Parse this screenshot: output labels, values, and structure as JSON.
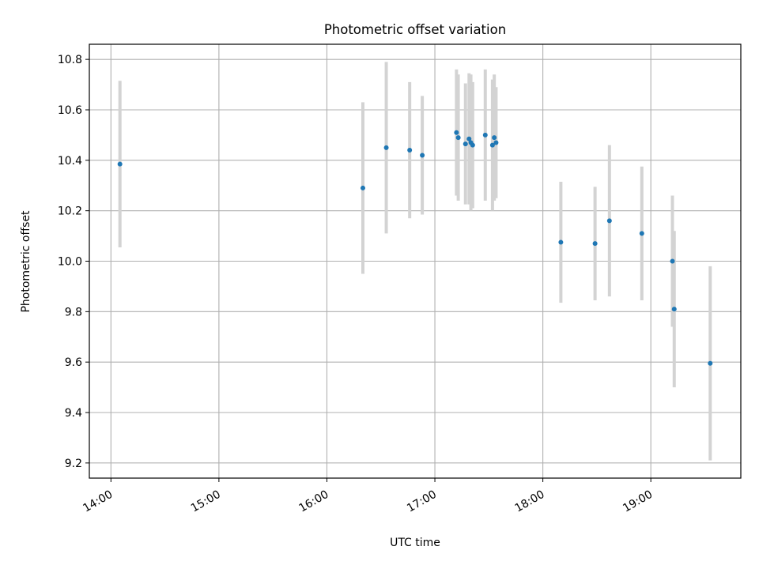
{
  "chart_data": {
    "type": "scatter",
    "title": "Photometric offset variation",
    "xlabel": "UTC time",
    "ylabel": "Photometric offset",
    "x_tick_labels": [
      "14:00",
      "15:00",
      "16:00",
      "17:00",
      "18:00",
      "19:00"
    ],
    "y_tick_labels": [
      "9.2",
      "9.4",
      "9.6",
      "9.8",
      "10.0",
      "10.2",
      "10.4",
      "10.6",
      "10.8"
    ],
    "xlim": [
      "13:48",
      "19:50"
    ],
    "ylim": [
      9.14,
      10.86
    ],
    "grid": true,
    "point_color": "#1f77b4",
    "errorbar_color": "#d3d3d3",
    "points": [
      {
        "x": "14:05",
        "y": 10.385,
        "yerr": 0.33
      },
      {
        "x": "16:20",
        "y": 10.29,
        "yerr": 0.34
      },
      {
        "x": "16:33",
        "y": 10.45,
        "yerr": 0.34
      },
      {
        "x": "16:46",
        "y": 10.44,
        "yerr": 0.27
      },
      {
        "x": "16:53",
        "y": 10.42,
        "yerr": 0.235
      },
      {
        "x": "17:12",
        "y": 10.51,
        "yerr": 0.25
      },
      {
        "x": "17:13",
        "y": 10.49,
        "yerr": 0.25
      },
      {
        "x": "17:17",
        "y": 10.465,
        "yerr": 0.24
      },
      {
        "x": "17:19",
        "y": 10.485,
        "yerr": 0.26
      },
      {
        "x": "17:21",
        "y": 10.46,
        "yerr": 0.25
      },
      {
        "x": "17:20",
        "y": 10.47,
        "yerr": 0.27
      },
      {
        "x": "17:28",
        "y": 10.5,
        "yerr": 0.26
      },
      {
        "x": "17:32",
        "y": 10.46,
        "yerr": 0.26
      },
      {
        "x": "17:33",
        "y": 10.49,
        "yerr": 0.25
      },
      {
        "x": "17:34",
        "y": 10.47,
        "yerr": 0.22
      },
      {
        "x": "18:10",
        "y": 10.075,
        "yerr": 0.24
      },
      {
        "x": "18:29",
        "y": 10.07,
        "yerr": 0.225
      },
      {
        "x": "18:37",
        "y": 10.16,
        "yerr": 0.3
      },
      {
        "x": "18:55",
        "y": 10.11,
        "yerr": 0.265
      },
      {
        "x": "19:12",
        "y": 10.0,
        "yerr": 0.26
      },
      {
        "x": "19:13",
        "y": 9.81,
        "yerr": 0.31
      },
      {
        "x": "19:33",
        "y": 9.595,
        "yerr": 0.385
      }
    ]
  }
}
